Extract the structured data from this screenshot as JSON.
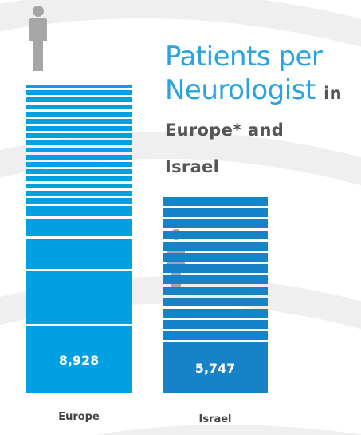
{
  "title": {
    "line1": "Patients per",
    "line2": "Neurologist",
    "line2_suffix": "in",
    "line3": "Europe* and",
    "line4": "Israel"
  },
  "colors": {
    "europe": "#00a0e3",
    "israel": "#1783c7",
    "title_accent": "#29a3e0",
    "person": "#a6a6a6",
    "arc": "#efefef"
  },
  "icons": {
    "person": "person-icon"
  },
  "chart_data": {
    "type": "bar",
    "categories": [
      "Europe",
      "Israel"
    ],
    "values": [
      8928,
      5747
    ],
    "value_labels": [
      "8,928",
      "5,747"
    ]
  }
}
